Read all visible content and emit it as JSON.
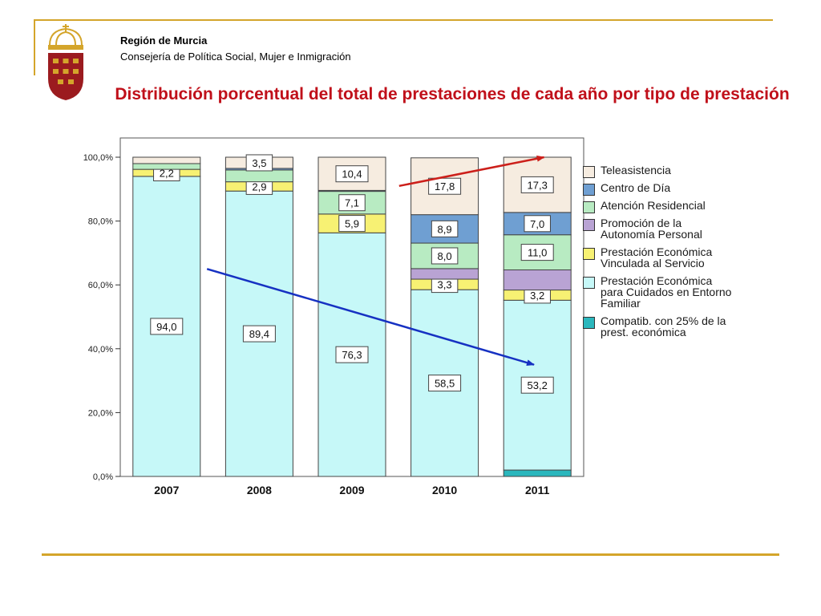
{
  "header": {
    "org_name": "Región de Murcia",
    "org_subtitle": "Consejería de Política Social, Mujer e Inmigración",
    "title": "Distribución porcentual del total de prestaciones de cada año por tipo de prestación"
  },
  "colors": {
    "accent_gold": "#d4a52b",
    "title_red": "#c0101a",
    "logo_red": "#9b1b1f",
    "trend_up": "#cc1f1a",
    "trend_down": "#1631c2"
  },
  "chart_data": {
    "type": "bar",
    "stacked": true,
    "categories": [
      "2007",
      "2008",
      "2009",
      "2010",
      "2011"
    ],
    "y_ticks": [
      "0,0%",
      "20,0%",
      "40,0%",
      "60,0%",
      "80,0%",
      "100,0%"
    ],
    "ylim": [
      0,
      100
    ],
    "grid": false,
    "legend_position": "right",
    "series": [
      {
        "name": "Compatib. con 25% de la prest. económica",
        "legend_label": "Compatib. con 25% de la\nprest. económica",
        "color": "#2bb7bd",
        "values": [
          0,
          0,
          0,
          0,
          2.0
        ],
        "labels": [
          null,
          null,
          null,
          null,
          null
        ]
      },
      {
        "name": "Prestación Económica para Cuidados en Entorno Familiar",
        "legend_label": "Prestación Económica\npara Cuidados en Entorno\nFamiliar",
        "color": "#c6f8f8",
        "values": [
          94.0,
          89.4,
          76.3,
          58.5,
          53.2
        ],
        "labels": [
          "94,0",
          "89,4",
          "76,3",
          "58,5",
          "53,2"
        ]
      },
      {
        "name": "Prestación Económica Vinculada al Servicio",
        "legend_label": "Prestación Económica\nVinculada al Servicio",
        "color": "#f7f173",
        "values": [
          2.2,
          2.9,
          5.9,
          3.3,
          3.2
        ],
        "labels": [
          "2,2",
          "2,9",
          "5,9",
          "3,3",
          "3,2"
        ]
      },
      {
        "name": "Promoción de la Autonomía Personal",
        "legend_label": "Promoción de la\nAutonomía Personal",
        "color": "#b9a3d4",
        "values": [
          0,
          0,
          0,
          3.3,
          6.3
        ],
        "labels": [
          null,
          null,
          null,
          null,
          null
        ]
      },
      {
        "name": "Atención Residencial",
        "legend_label": "Atención Residencial",
        "color": "#b8ebc2",
        "values": [
          1.8,
          3.7,
          7.1,
          8.0,
          11.0
        ],
        "labels": [
          null,
          null,
          "7,1",
          "8,0",
          "11,0"
        ]
      },
      {
        "name": "Centro de Día",
        "legend_label": "Centro de Día",
        "color": "#6f9fd2",
        "values": [
          0,
          0.5,
          0.3,
          8.9,
          7.0
        ],
        "labels": [
          null,
          null,
          null,
          "8,9",
          "7,0"
        ]
      },
      {
        "name": "Teleasistencia",
        "legend_label": "Teleasistencia",
        "color": "#f6ece0",
        "values": [
          2.0,
          3.5,
          10.4,
          17.8,
          17.3
        ],
        "labels": [
          null,
          "3,5",
          "10,4",
          "17,8",
          "17,3"
        ]
      }
    ],
    "legend_order": [
      "Teleasistencia",
      "Centro de Día",
      "Atención Residencial",
      "Promoción de la Autonomía Personal",
      "Prestación Económica Vinculada al Servicio",
      "Prestación Económica para Cuidados en Entorno Familiar",
      "Compatib. con 25% de la prest. económica"
    ],
    "annotations": [
      {
        "type": "arrow",
        "color": "#cc1f1a",
        "from": {
          "category": "2009",
          "offset": 0.7,
          "y": 91
        },
        "to": {
          "category": "2011",
          "offset": 0.1,
          "y": 100
        }
      },
      {
        "type": "arrow",
        "color": "#1631c2",
        "from": {
          "category": "2007",
          "offset": 0.6,
          "y": 65
        },
        "to": {
          "category": "2011",
          "offset": -0.05,
          "y": 35
        }
      }
    ]
  }
}
